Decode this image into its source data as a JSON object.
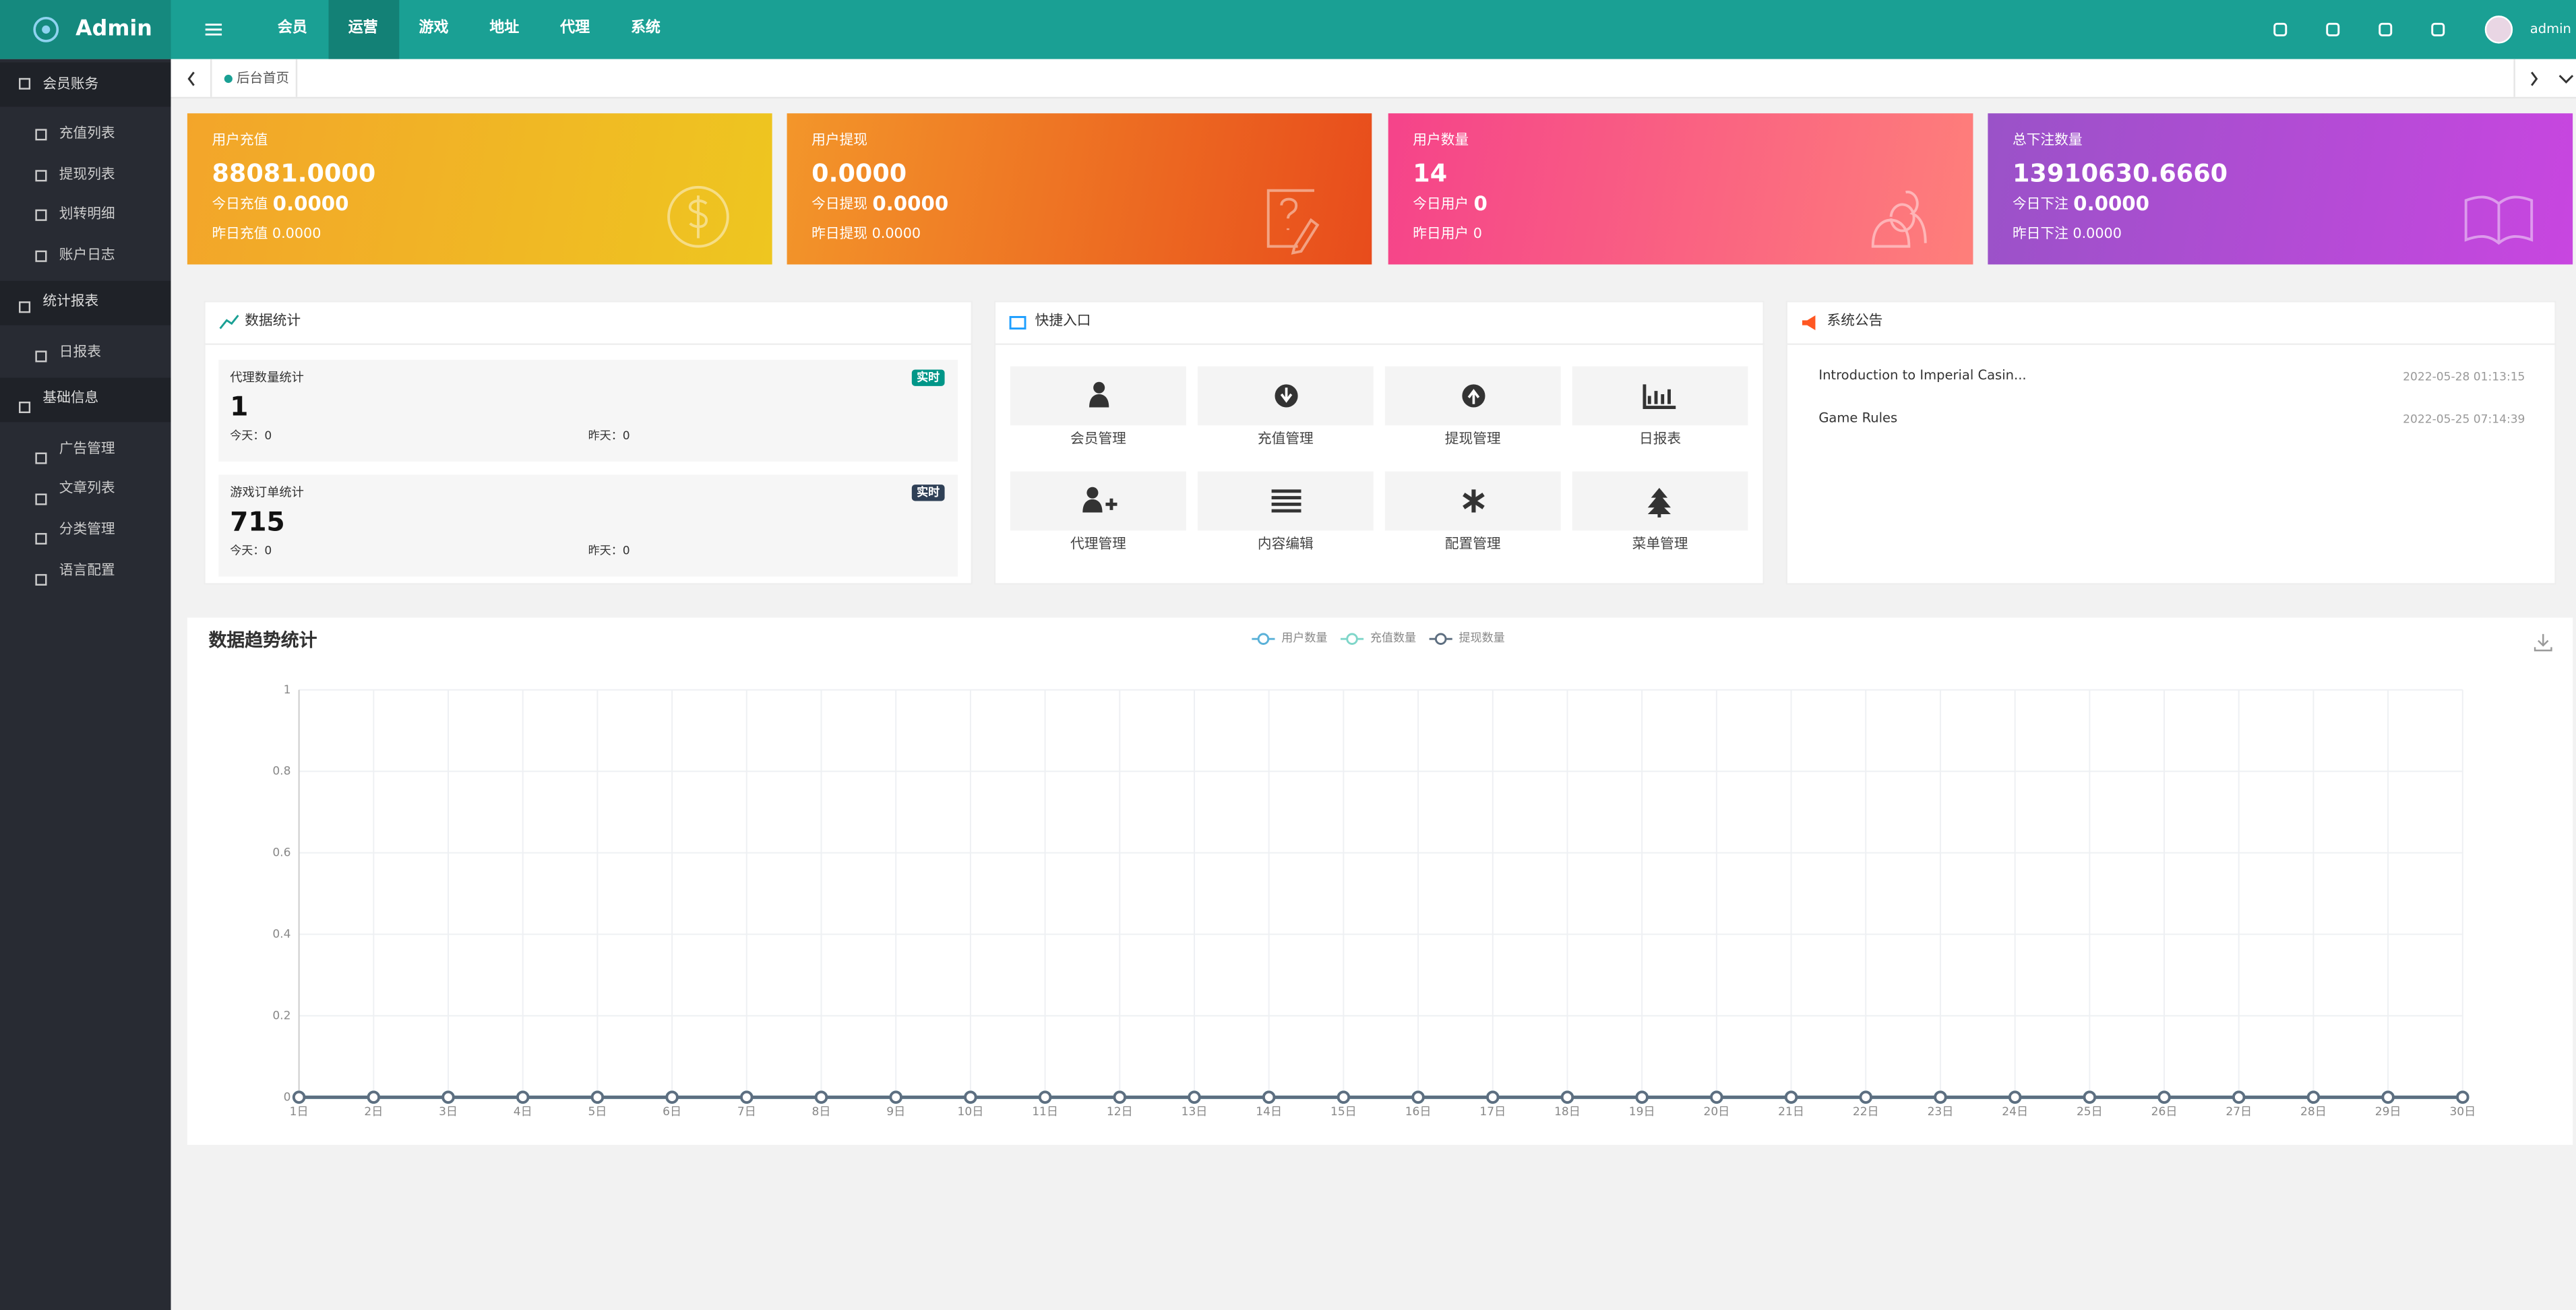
{
  "header": {
    "logo": "Admin",
    "nav": [
      "会员",
      "运营",
      "游戏",
      "地址",
      "代理",
      "系统"
    ],
    "user": "admin"
  },
  "sidebar": [
    {
      "title": "会员账务",
      "items": [
        "充值列表",
        "提现列表",
        "划转明细",
        "账户日志"
      ]
    },
    {
      "title": "统计报表",
      "items": [
        "日报表"
      ]
    },
    {
      "title": "基础信息",
      "items": [
        "广告管理",
        "文章列表",
        "分类管理",
        "语言配置"
      ]
    }
  ],
  "tabs": [
    "后台首页"
  ],
  "cards": [
    {
      "title": "用户充值",
      "value": "88081.0000",
      "today_label": "今日充值",
      "today": "0.0000",
      "yesterday": "昨日充值 0.0000"
    },
    {
      "title": "用户提现",
      "value": "0.0000",
      "today_label": "今日提现",
      "today": "0.0000",
      "yesterday": "昨日提现 0.0000"
    },
    {
      "title": "用户数量",
      "value": "14",
      "today_label": "今日用户",
      "today": "0",
      "yesterday": "昨日用户 0"
    },
    {
      "title": "总下注数量",
      "value": "13910630.6660",
      "today_label": "今日下注",
      "today": "0.0000",
      "yesterday": "昨日下注 0.0000"
    }
  ],
  "stats": {
    "title": "数据统计",
    "items": [
      {
        "label": "代理数量统计",
        "badge": "实时",
        "value": "1",
        "today": "今天：0",
        "yesterday": "昨天：0"
      },
      {
        "label": "游戏订单统计",
        "badge": "实时",
        "value": "715",
        "today": "今天：0",
        "yesterday": "昨天：0"
      }
    ]
  },
  "shortcuts": {
    "title": "快捷入口",
    "items": [
      "会员管理",
      "充值管理",
      "提现管理",
      "日报表",
      "代理管理",
      "内容编辑",
      "配置管理",
      "菜单管理"
    ]
  },
  "notices": {
    "title": "系统公告",
    "items": [
      {
        "title": "Introduction to Imperial Casin...",
        "date": "2022-05-28 01:13:15"
      },
      {
        "title": "Game Rules",
        "date": "2022-05-25 07:14:39"
      }
    ]
  },
  "chart_data": {
    "type": "line",
    "title": "数据趋势统计",
    "categories": [
      "1日",
      "2日",
      "3日",
      "4日",
      "5日",
      "6日",
      "7日",
      "8日",
      "9日",
      "10日",
      "11日",
      "12日",
      "13日",
      "14日",
      "15日",
      "16日",
      "17日",
      "18日",
      "19日",
      "20日",
      "21日",
      "22日",
      "23日",
      "24日",
      "25日",
      "26日",
      "27日",
      "28日",
      "29日",
      "30日"
    ],
    "series": [
      {
        "name": "用户数量",
        "color": "#5ab1d8",
        "values": [
          0,
          0,
          0,
          0,
          0,
          0,
          0,
          0,
          0,
          0,
          0,
          0,
          0,
          0,
          0,
          0,
          0,
          0,
          0,
          0,
          0,
          0,
          0,
          0,
          0,
          0,
          0,
          0,
          0,
          0
        ]
      },
      {
        "name": "充值数量",
        "color": "#7fd6c9",
        "values": [
          0,
          0,
          0,
          0,
          0,
          0,
          0,
          0,
          0,
          0,
          0,
          0,
          0,
          0,
          0,
          0,
          0,
          0,
          0,
          0,
          0,
          0,
          0,
          0,
          0,
          0,
          0,
          0,
          0,
          0
        ]
      },
      {
        "name": "提现数量",
        "color": "#5d6e80",
        "values": [
          0,
          0,
          0,
          0,
          0,
          0,
          0,
          0,
          0,
          0,
          0,
          0,
          0,
          0,
          0,
          0,
          0,
          0,
          0,
          0,
          0,
          0,
          0,
          0,
          0,
          0,
          0,
          0,
          0,
          0
        ]
      }
    ],
    "ylim": [
      0,
      1
    ],
    "yticks": [
      0,
      0.2,
      0.4,
      0.6,
      0.8,
      1
    ],
    "grid": true
  }
}
